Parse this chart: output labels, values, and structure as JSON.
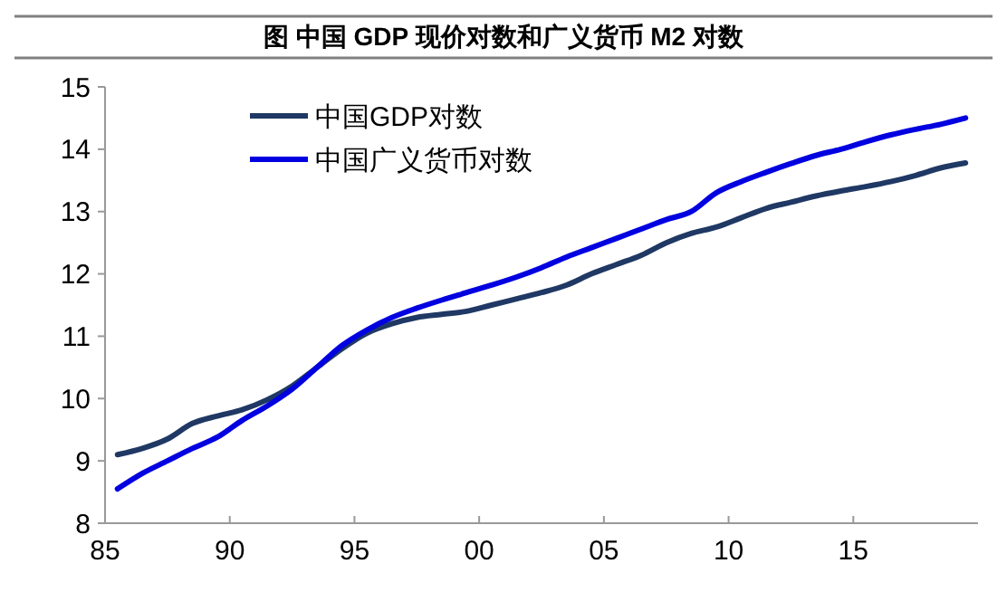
{
  "chart_data": {
    "type": "line",
    "title": "图  中国 GDP 现价对数和广义货币 M2 对数",
    "x": [
      1985.5,
      1986.5,
      1987.5,
      1988.5,
      1989.5,
      1990.5,
      1991.5,
      1992.5,
      1993.5,
      1994.5,
      1995.5,
      1996.5,
      1997.5,
      1998.5,
      1999.5,
      2000.5,
      2001.5,
      2002.5,
      2003.5,
      2004.5,
      2005.5,
      2006.5,
      2007.5,
      2008.5,
      2009.5,
      2010.5,
      2011.5,
      2012.5,
      2013.5,
      2014.5,
      2015.5,
      2016.5,
      2017.5,
      2018.5,
      2019.5
    ],
    "series": [
      {
        "name": "中国GDP对数",
        "color": "#1f3864",
        "values": [
          9.1,
          9.2,
          9.35,
          9.6,
          9.72,
          9.82,
          9.98,
          10.2,
          10.5,
          10.8,
          11.05,
          11.2,
          11.3,
          11.35,
          11.4,
          11.5,
          11.6,
          11.7,
          11.82,
          12.0,
          12.15,
          12.3,
          12.5,
          12.65,
          12.75,
          12.9,
          13.05,
          13.15,
          13.25,
          13.33,
          13.4,
          13.48,
          13.58,
          13.7,
          13.78
        ]
      },
      {
        "name": "中国广义货币对数",
        "color": "#0000e0",
        "values": [
          8.55,
          8.8,
          9.0,
          9.2,
          9.38,
          9.65,
          9.88,
          10.15,
          10.5,
          10.85,
          11.1,
          11.3,
          11.45,
          11.58,
          11.7,
          11.82,
          11.95,
          12.1,
          12.27,
          12.42,
          12.57,
          12.72,
          12.87,
          13.0,
          13.3,
          13.48,
          13.63,
          13.77,
          13.9,
          14.0,
          14.12,
          14.23,
          14.32,
          14.4,
          14.5
        ]
      }
    ],
    "xlim": [
      1985,
      2020
    ],
    "xticks": [
      {
        "value": 1985,
        "label": "85"
      },
      {
        "value": 1990,
        "label": "90"
      },
      {
        "value": 1995,
        "label": "95"
      },
      {
        "value": 2000,
        "label": "00"
      },
      {
        "value": 2005,
        "label": "05"
      },
      {
        "value": 2010,
        "label": "10"
      },
      {
        "value": 2015,
        "label": "15"
      }
    ],
    "ylim": [
      8,
      15
    ],
    "yticks": [
      8,
      9,
      10,
      11,
      12,
      13,
      14,
      15
    ],
    "grid": false,
    "legend": "top left",
    "marker": "none",
    "line_style": "solid"
  }
}
